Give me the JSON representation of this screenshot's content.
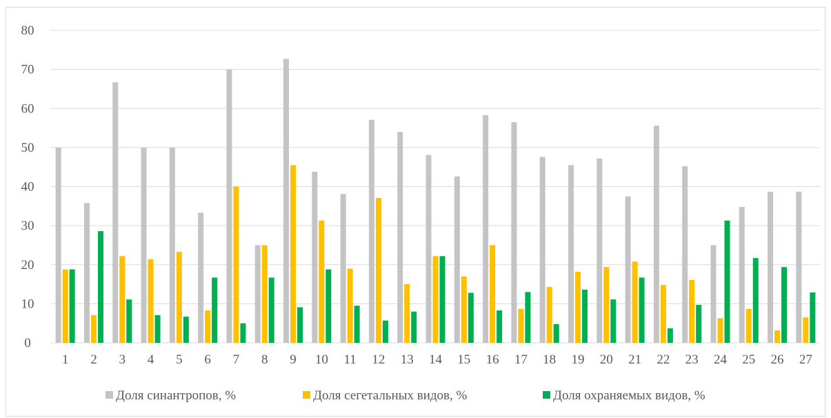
{
  "chart_data": {
    "type": "bar",
    "categories": [
      "1",
      "2",
      "3",
      "4",
      "5",
      "6",
      "7",
      "8",
      "9",
      "10",
      "11",
      "12",
      "13",
      "14",
      "15",
      "16",
      "17",
      "18",
      "19",
      "20",
      "21",
      "22",
      "23",
      "24",
      "25",
      "26",
      "27"
    ],
    "series": [
      {
        "name": "Доля синантропов, %",
        "color": "#c4c4c4",
        "values": [
          50,
          35.8,
          66.7,
          50,
          50,
          33.3,
          70,
          25,
          72.7,
          43.8,
          38.1,
          57.1,
          54,
          48.1,
          42.6,
          58.3,
          56.5,
          47.6,
          45.5,
          47.2,
          37.5,
          55.6,
          45.2,
          25,
          34.8,
          38.7,
          38.7
        ]
      },
      {
        "name": "Доля сегетальных видов, %",
        "color": "#ffc000",
        "values": [
          18.8,
          7.1,
          22.2,
          21.4,
          23.3,
          8.3,
          40,
          25,
          45.5,
          31.3,
          19,
          37.1,
          15,
          22.2,
          17,
          25,
          8.7,
          14.3,
          18.2,
          19.4,
          20.8,
          14.8,
          16.1,
          6.3,
          8.7,
          3.2,
          6.5
        ]
      },
      {
        "name": "Доля охраняемых видов, %",
        "color": "#00b050",
        "values": [
          18.8,
          28.6,
          11.1,
          7.1,
          6.7,
          16.7,
          5,
          16.7,
          9.1,
          18.8,
          9.5,
          5.7,
          8,
          22.2,
          12.8,
          8.3,
          13,
          4.8,
          13.6,
          11.1,
          16.7,
          3.7,
          9.7,
          31.3,
          21.7,
          19.4,
          12.9
        ]
      }
    ],
    "y_ticks": [
      "0",
      "10",
      "20",
      "30",
      "40",
      "50",
      "60",
      "70",
      "80"
    ],
    "ylim": [
      0,
      80
    ],
    "grid": true,
    "legend_position": "bottom",
    "gridline_color": "#d9d9d9"
  }
}
